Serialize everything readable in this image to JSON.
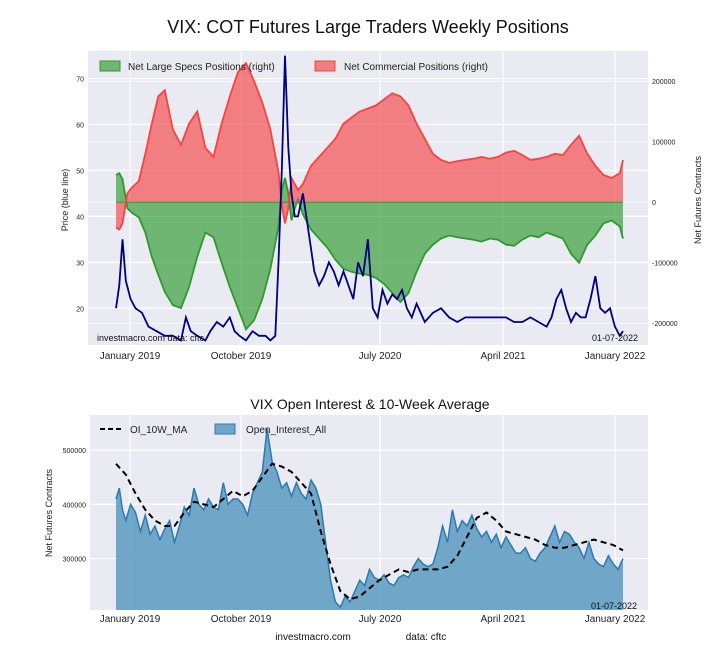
{
  "chart_data": [
    {
      "type": "area",
      "title": "VIX: COT Futures Large Traders Weekly Positions",
      "ylabel_left": "Price (blue line)",
      "ylabel_right": "Net Futures Contracts",
      "x_ticks": [
        "January 2019",
        "October 2019",
        "July 2020",
        "April 2021",
        "January 2022"
      ],
      "y_left_ticks": [
        "20",
        "30",
        "40",
        "50",
        "60",
        "70"
      ],
      "y_right_ticks": [
        "200000",
        "100000",
        "0",
        "-100000",
        "-200000"
      ],
      "ylim_left": [
        12,
        76
      ],
      "ylim_right": [
        -236000,
        250000
      ],
      "grid": true,
      "legend_position": "top",
      "annotations": {
        "source": "investmacro.com   data: cftc",
        "date": "01-07-2022"
      },
      "series": [
        {
          "name": "Net Large Specs Positions (right)",
          "kind": "area",
          "axis": "right",
          "color": "#2e9a2e",
          "x": [
            0,
            2,
            4,
            7,
            10,
            14,
            18,
            22,
            26,
            30,
            35,
            40,
            45,
            50,
            55,
            60,
            65,
            70,
            75,
            80,
            85,
            90,
            95,
            100,
            102,
            104,
            106,
            108,
            110,
            112,
            115,
            120,
            125,
            130,
            135,
            140,
            145,
            150,
            155,
            160,
            165,
            170,
            175,
            180,
            185,
            190,
            195,
            200,
            205,
            210,
            215,
            220,
            225,
            230,
            235,
            240,
            245,
            250,
            255,
            260,
            265,
            270,
            275,
            280,
            285,
            290,
            295,
            300,
            305,
            310,
            312
          ],
          "values": [
            45000,
            48000,
            38000,
            -10000,
            -18000,
            -25000,
            -50000,
            -90000,
            -120000,
            -148000,
            -170000,
            -175000,
            -140000,
            -90000,
            -50000,
            -58000,
            -100000,
            -140000,
            -175000,
            -210000,
            -195000,
            -160000,
            -110000,
            -40000,
            20000,
            40000,
            15000,
            -30000,
            -10000,
            5000,
            -20000,
            -45000,
            -60000,
            -75000,
            -95000,
            -110000,
            -115000,
            -118000,
            -120000,
            -125000,
            -135000,
            -150000,
            -165000,
            -150000,
            -115000,
            -85000,
            -70000,
            -60000,
            -55000,
            -58000,
            -60000,
            -62000,
            -65000,
            -60000,
            -62000,
            -70000,
            -72000,
            -62000,
            -55000,
            -58000,
            -50000,
            -55000,
            -60000,
            -85000,
            -100000,
            -70000,
            -55000,
            -35000,
            -30000,
            -40000,
            -60000
          ]
        },
        {
          "name": "Net Commercial Positions (right)",
          "kind": "area",
          "axis": "right",
          "color": "#f44444",
          "x": [
            0,
            2,
            4,
            7,
            10,
            14,
            18,
            22,
            26,
            30,
            35,
            40,
            45,
            50,
            55,
            60,
            65,
            70,
            75,
            80,
            85,
            90,
            95,
            100,
            102,
            104,
            106,
            108,
            110,
            112,
            115,
            120,
            125,
            130,
            135,
            140,
            145,
            150,
            155,
            160,
            165,
            170,
            175,
            180,
            185,
            190,
            195,
            200,
            205,
            210,
            215,
            220,
            225,
            230,
            235,
            240,
            245,
            250,
            255,
            260,
            265,
            270,
            275,
            280,
            285,
            290,
            295,
            300,
            305,
            310,
            312
          ],
          "values": [
            -42000,
            -45000,
            -35000,
            15000,
            25000,
            35000,
            80000,
            130000,
            175000,
            185000,
            120000,
            95000,
            130000,
            150000,
            90000,
            75000,
            130000,
            175000,
            215000,
            230000,
            200000,
            165000,
            120000,
            50000,
            -5000,
            -35000,
            -10000,
            40000,
            30000,
            20000,
            30000,
            60000,
            75000,
            90000,
            105000,
            130000,
            140000,
            150000,
            155000,
            160000,
            170000,
            180000,
            175000,
            160000,
            130000,
            105000,
            80000,
            70000,
            65000,
            68000,
            70000,
            72000,
            75000,
            72000,
            75000,
            82000,
            85000,
            78000,
            70000,
            72000,
            75000,
            80000,
            78000,
            95000,
            110000,
            80000,
            60000,
            45000,
            40000,
            48000,
            70000
          ]
        },
        {
          "name": "Price",
          "kind": "line",
          "axis": "left",
          "color": "#000080",
          "x": [
            0,
            2,
            4,
            6,
            9,
            12,
            16,
            20,
            25,
            30,
            35,
            40,
            43,
            46,
            50,
            55,
            58,
            62,
            66,
            70,
            73,
            76,
            80,
            84,
            88,
            92,
            95,
            98,
            100,
            102,
            104,
            106,
            108,
            110,
            112,
            115,
            120,
            122,
            125,
            128,
            131,
            134,
            137,
            140,
            143,
            146,
            149,
            152,
            155,
            158,
            161,
            164,
            167,
            170,
            173,
            176,
            179,
            182,
            185,
            190,
            195,
            200,
            205,
            210,
            215,
            220,
            225,
            230,
            235,
            240,
            245,
            250,
            255,
            260,
            265,
            268,
            271,
            274,
            277,
            280,
            283,
            286,
            289,
            292,
            295,
            298,
            301,
            304,
            307,
            310,
            312
          ],
          "values": [
            20,
            25,
            35,
            26,
            22,
            20,
            19,
            16,
            15,
            14,
            14,
            13,
            18,
            15,
            14,
            13,
            15,
            17,
            16,
            18,
            15,
            14,
            13,
            15,
            14,
            14,
            13,
            14,
            30,
            50,
            75,
            55,
            45,
            40,
            40,
            45,
            33,
            28,
            25,
            27,
            30,
            28,
            25,
            28,
            25,
            22,
            30,
            27,
            35,
            20,
            18,
            24,
            21,
            23,
            22,
            24,
            20,
            18,
            21,
            17,
            19,
            20,
            18,
            17,
            18,
            18,
            18,
            18,
            18,
            18,
            17,
            17,
            18,
            17,
            16,
            18,
            22,
            24,
            20,
            17,
            19,
            18,
            18,
            22,
            27,
            20,
            19,
            20,
            16,
            14,
            15
          ]
        }
      ]
    },
    {
      "type": "area",
      "title": "VIX Open Interest & 10-Week Average",
      "ylabel": "Net Futures Contracts",
      "x_ticks": [
        "January 2019",
        "October 2019",
        "July 2020",
        "April 2021",
        "January 2022"
      ],
      "y_ticks": [
        "500000",
        "400000",
        "300000"
      ],
      "ylim": [
        205000,
        565000
      ],
      "grid": true,
      "legend_position": "top-left",
      "annotations": {
        "date": "01-07-2022"
      },
      "series": [
        {
          "name": "Open_Interest_All",
          "kind": "area",
          "color": "#5b9ac0",
          "x": [
            0,
            2,
            4,
            6,
            9,
            12,
            15,
            18,
            21,
            24,
            27,
            30,
            33,
            36,
            39,
            42,
            45,
            48,
            51,
            54,
            57,
            60,
            63,
            66,
            69,
            72,
            75,
            78,
            81,
            84,
            87,
            90,
            93,
            96,
            99,
            102,
            105,
            108,
            111,
            114,
            117,
            120,
            123,
            126,
            129,
            132,
            135,
            138,
            141,
            144,
            147,
            150,
            153,
            156,
            159,
            162,
            165,
            168,
            171,
            174,
            177,
            180,
            183,
            186,
            189,
            192,
            195,
            198,
            201,
            204,
            207,
            210,
            213,
            216,
            219,
            222,
            225,
            228,
            231,
            234,
            237,
            240,
            243,
            246,
            249,
            252,
            255,
            258,
            261,
            264,
            267,
            270,
            273,
            276,
            279,
            282,
            285,
            288,
            291,
            294,
            297,
            300,
            303,
            306,
            309,
            312
          ],
          "values": [
            410000,
            430000,
            390000,
            370000,
            400000,
            385000,
            350000,
            380000,
            345000,
            360000,
            335000,
            355000,
            370000,
            330000,
            360000,
            395000,
            380000,
            430000,
            400000,
            390000,
            410000,
            395000,
            390000,
            440000,
            400000,
            410000,
            410000,
            400000,
            380000,
            420000,
            440000,
            460000,
            540000,
            480000,
            460000,
            430000,
            440000,
            415000,
            440000,
            420000,
            410000,
            445000,
            430000,
            400000,
            330000,
            260000,
            220000,
            210000,
            230000,
            220000,
            240000,
            260000,
            250000,
            280000,
            265000,
            260000,
            270000,
            255000,
            250000,
            265000,
            270000,
            265000,
            285000,
            300000,
            290000,
            285000,
            290000,
            320000,
            360000,
            330000,
            390000,
            350000,
            370000,
            360000,
            380000,
            355000,
            340000,
            350000,
            330000,
            345000,
            320000,
            340000,
            325000,
            310000,
            310000,
            320000,
            300000,
            295000,
            310000,
            320000,
            340000,
            360000,
            330000,
            350000,
            345000,
            330000,
            320000,
            300000,
            330000,
            300000,
            290000,
            285000,
            305000,
            290000,
            280000,
            300000
          ],
          "floor": 205000
        },
        {
          "name": "OI_10W_MA",
          "kind": "line",
          "style": "dashed",
          "color": "#000000",
          "x": [
            0,
            6,
            12,
            18,
            24,
            30,
            36,
            42,
            48,
            54,
            60,
            66,
            72,
            78,
            84,
            90,
            96,
            102,
            108,
            114,
            120,
            126,
            132,
            138,
            144,
            150,
            156,
            162,
            168,
            174,
            180,
            186,
            192,
            198,
            204,
            210,
            216,
            222,
            228,
            234,
            240,
            246,
            252,
            258,
            264,
            270,
            276,
            282,
            288,
            294,
            300,
            306,
            312
          ],
          "values": [
            475000,
            455000,
            420000,
            390000,
            370000,
            360000,
            360000,
            385000,
            405000,
            400000,
            395000,
            410000,
            425000,
            415000,
            425000,
            450000,
            475000,
            470000,
            460000,
            440000,
            420000,
            350000,
            290000,
            240000,
            225000,
            230000,
            245000,
            260000,
            270000,
            280000,
            275000,
            280000,
            280000,
            280000,
            285000,
            305000,
            340000,
            375000,
            385000,
            370000,
            350000,
            345000,
            340000,
            335000,
            325000,
            320000,
            320000,
            325000,
            330000,
            335000,
            330000,
            325000,
            315000
          ]
        }
      ]
    }
  ],
  "footer": {
    "left": "investmacro.com",
    "right": "data: cftc"
  }
}
